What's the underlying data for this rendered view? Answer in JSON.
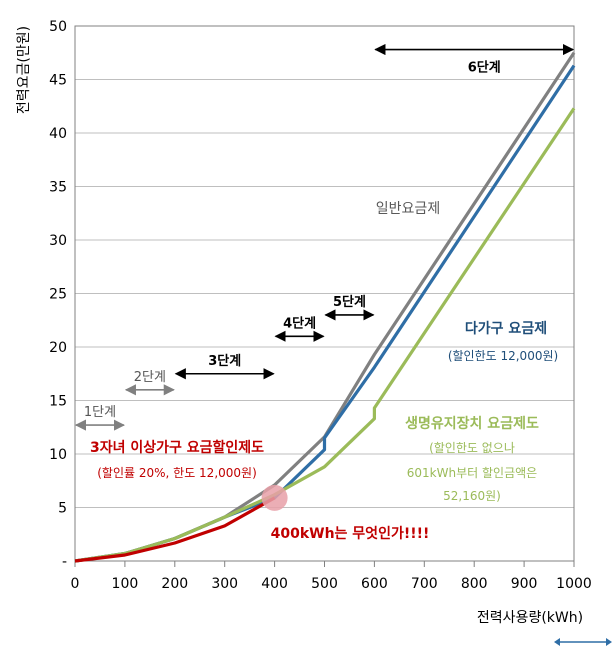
{
  "chart_data": {
    "type": "line",
    "title": "",
    "xlabel": "전력사용량(kWh)",
    "ylabel": "전력요금(만원)",
    "xlim": [
      0,
      1000
    ],
    "ylim": [
      0,
      50
    ],
    "x_ticks": [
      "0",
      "100",
      "200",
      "300",
      "400",
      "500",
      "600",
      "700",
      "800",
      "900",
      "1000"
    ],
    "y_ticks": [
      "-",
      "5",
      "10",
      "15",
      "20",
      "25",
      "30",
      "35",
      "40",
      "45",
      "50"
    ],
    "grid": true,
    "series": [
      {
        "name": "일반요금제",
        "color": "#808080",
        "x": [
          0,
          100,
          200,
          300,
          400,
          500,
          600,
          1000
        ],
        "y": [
          0,
          0.7,
          2.1,
          4.1,
          7.1,
          11.6,
          19.3,
          47.5
        ]
      },
      {
        "name": "다가구 요금제",
        "color": "#2f6ea6",
        "x": [
          0,
          100,
          200,
          300,
          400,
          500,
          500,
          600,
          1000
        ],
        "y": [
          0,
          0.7,
          2.1,
          4.1,
          5.9,
          10.4,
          11.5,
          18.1,
          46.3
        ]
      },
      {
        "name": "생명유지장치 요금제도",
        "color": "#9bbb59",
        "x": [
          0,
          100,
          200,
          300,
          400,
          500,
          600,
          600,
          1000
        ],
        "y": [
          0,
          0.7,
          2.1,
          4.1,
          6.2,
          8.8,
          13.3,
          14.3,
          42.3
        ]
      },
      {
        "name": "3자녀 이상가구 요금할인제도",
        "color": "#c00000",
        "x": [
          0,
          100,
          200,
          300,
          400
        ],
        "y": [
          0,
          0.56,
          1.68,
          3.28,
          5.9
        ]
      }
    ],
    "stages": [
      {
        "label": "1단계",
        "x0": 0,
        "x1": 100,
        "y": 12.7,
        "bold": false
      },
      {
        "label": "2단계",
        "x0": 100,
        "x1": 200,
        "y": 16.0,
        "bold": false
      },
      {
        "label": "3단계",
        "x0": 200,
        "x1": 400,
        "y": 17.5,
        "bold": true
      },
      {
        "label": "4단계",
        "x0": 400,
        "x1": 500,
        "y": 21.0,
        "bold": true
      },
      {
        "label": "5단계",
        "x0": 500,
        "x1": 600,
        "y": 23.0,
        "bold": true
      },
      {
        "label": "6단계",
        "x0": 600,
        "x1": 1000,
        "y": 47.8,
        "bold": true
      }
    ],
    "annotations": {
      "general": "일반요금제",
      "multi": "다가구 요금제",
      "multi_note": "(할인한도 12,000원)",
      "life": "생명유지장치 요금제도",
      "life_note1": "(할인한도 없으나",
      "life_note2": "601kWh부터 할인금액은",
      "life_note3": "52,160원)",
      "three": "3자녀 이상가구 요금할인제도",
      "three_note": "(할인률 20%, 한도 12,000원)",
      "highlight": "400kWh는 무엇인가!!!!"
    },
    "colors": {
      "accent_red": "#c00000",
      "highlight_circle": "#e8a0a8"
    }
  }
}
